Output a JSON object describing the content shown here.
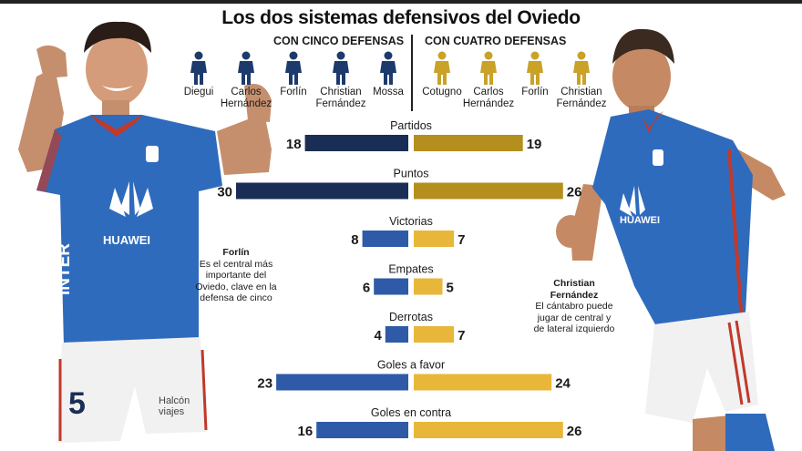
{
  "title": "Los dos sistemas defensivos del Oviedo",
  "systems": {
    "five": {
      "label": "CON CINCO DEFENSAS",
      "color": "#1d3a6c",
      "players": [
        "Diegui",
        "Carlos\nHernández",
        "Forlín",
        "Christian\nFernández",
        "Mossa"
      ]
    },
    "four": {
      "label": "CON CUATRO DEFENSAS",
      "color": "#c9a227",
      "players": [
        "Cotugno",
        "Carlos\nHernández",
        "Forlín",
        "Christian\nFernández"
      ]
    }
  },
  "captions": {
    "left": {
      "name": "Forlín",
      "text": "Es el central más importante del Oviedo, clave en la defensa de cinco"
    },
    "right": {
      "name": "Christian Fernández",
      "text": "El cántabro puede jugar de central y de lateral izquierdo"
    }
  },
  "photos": {
    "left": {
      "jersey_text": "HUAWEI",
      "sponsor": "INTER",
      "number": "5",
      "shorts_text": "Halcón viajes"
    },
    "right": {
      "jersey_text": "HUAWEI"
    }
  },
  "chart_data": {
    "type": "bar",
    "orientation": "diverging-horizontal",
    "categories": [
      "Partidos",
      "Puntos",
      "Victorias",
      "Empates",
      "Derrotas",
      "Goles a favor",
      "Goles en contra"
    ],
    "series": [
      {
        "name": "CON CINCO DEFENSAS",
        "values": [
          18,
          30,
          8,
          6,
          4,
          23,
          16
        ]
      },
      {
        "name": "CON CUATRO DEFENSAS",
        "values": [
          19,
          26,
          7,
          5,
          7,
          24,
          26
        ]
      }
    ],
    "colors": {
      "five_dark": "#1a2e55",
      "five_light": "#2f5aa8",
      "four_dark": "#b58f1e",
      "four_light": "#e8b73a"
    }
  }
}
